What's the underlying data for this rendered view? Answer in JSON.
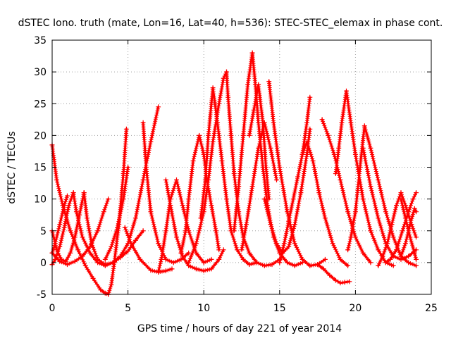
{
  "chart_data": {
    "type": "line",
    "title": "dSTEC Iono. truth (mate, Lon=16, Lat=40, h=536): STEC-STEC_elemax in phase cont.",
    "xlabel": "GPS time / hours of day 221 of year 2014",
    "ylabel": "dSTEC  / TECUs",
    "xlim": [
      0,
      25
    ],
    "ylim": [
      -5,
      35
    ],
    "xticks": [
      "0",
      "5",
      "10",
      "15",
      "20",
      "25"
    ],
    "yticks": [
      "-5",
      "0",
      "5",
      "10",
      "15",
      "20",
      "25",
      "30",
      "35"
    ],
    "grid": true,
    "marker": "plus",
    "color": "#ff0000",
    "series": [
      {
        "x": [
          0.0,
          0.3,
          0.7,
          1.2,
          1.7,
          2.2,
          2.7,
          3.2,
          3.5,
          3.7
        ],
        "y": [
          18.5,
          13,
          9,
          5,
          2,
          -0.5,
          -2.5,
          -4.3,
          -4.8,
          -5
        ]
      },
      {
        "x": [
          3.7,
          3.9,
          4.1,
          4.4,
          4.7,
          4.9
        ],
        "y": [
          -5,
          -3.5,
          0,
          6,
          14,
          21
        ]
      },
      {
        "x": [
          0.0,
          0.3,
          0.6,
          0.9,
          1.2,
          1.5,
          1.8,
          2.1
        ],
        "y": [
          5,
          2,
          0.5,
          0.2,
          1.5,
          4,
          7.5,
          11
        ]
      },
      {
        "x": [
          2.1,
          2.3,
          2.6,
          3.0,
          3.5,
          4.0,
          4.5,
          5.0,
          5.5,
          6.0
        ],
        "y": [
          11,
          7,
          3,
          0.5,
          -0.3,
          0,
          0.8,
          1.8,
          3.5,
          5
        ]
      },
      {
        "x": [
          0.0,
          0.5,
          1.0,
          1.5,
          2.0,
          2.5,
          3.0,
          3.4,
          3.7
        ],
        "y": [
          1.5,
          0.2,
          -0.3,
          0.2,
          1,
          2.5,
          5,
          8,
          10
        ]
      },
      {
        "x": [
          0.0,
          0.2,
          0.5,
          0.8,
          1.1,
          1.4
        ],
        "y": [
          -0.3,
          0.5,
          2.5,
          5.5,
          9,
          11
        ]
      },
      {
        "x": [
          1.4,
          1.6,
          2.0,
          2.5,
          3.0,
          3.5,
          4.0,
          4.5,
          5.0,
          5.5,
          6.0,
          6.5,
          7.0
        ],
        "y": [
          11,
          8,
          4,
          1.5,
          0,
          -0.5,
          0,
          1,
          3,
          7,
          13,
          19,
          24.5
        ]
      },
      {
        "x": [
          0.0,
          0.2,
          0.5,
          0.8,
          1.0
        ],
        "y": [
          1.5,
          3,
          6,
          9,
          10.5
        ]
      },
      {
        "x": [
          3.5,
          3.9,
          4.3,
          4.7,
          5.0
        ],
        "y": [
          0.5,
          2.5,
          5.5,
          10,
          15
        ]
      },
      {
        "x": [
          4.8,
          5.2,
          5.8,
          6.5,
          7.0,
          7.5,
          7.9
        ],
        "y": [
          5.5,
          3,
          0.5,
          -1.2,
          -1.5,
          -1.3,
          -1
        ]
      },
      {
        "x": [
          6.0,
          6.2,
          6.5,
          7.0,
          7.5,
          8.0,
          8.5,
          9.0
        ],
        "y": [
          22,
          15,
          8,
          3,
          0.5,
          0,
          0.5,
          1.5
        ]
      },
      {
        "x": [
          7.0,
          7.2,
          7.5,
          7.8,
          8.2,
          8.6,
          9.0,
          9.5,
          10.0,
          10.5
        ],
        "y": [
          -1.5,
          0.5,
          5,
          10,
          13,
          9,
          5,
          1.5,
          0,
          0.5
        ]
      },
      {
        "x": [
          7.5,
          7.8,
          8.2,
          8.6,
          9.0,
          9.5,
          10.0,
          10.5,
          11.0,
          11.3
        ],
        "y": [
          13,
          9,
          4,
          1,
          -0.5,
          -1,
          -1.3,
          -1,
          0.5,
          2
        ]
      },
      {
        "x": [
          8.5,
          8.8,
          9.0,
          9.3,
          9.7,
          10.0,
          10.2,
          10.5,
          10.8,
          11.0
        ],
        "y": [
          1.5,
          5,
          10,
          16,
          20,
          17,
          13,
          9,
          5,
          2
        ]
      },
      {
        "x": [
          9.0,
          9.5,
          10.0,
          10.3,
          10.6,
          11.0,
          11.3,
          11.5
        ],
        "y": [
          0,
          3,
          8,
          13,
          19,
          25,
          29,
          30
        ]
      },
      {
        "x": [
          9.8,
          10.1,
          10.3,
          10.6,
          10.9,
          11.2,
          11.5,
          11.8,
          12.2,
          12.6,
          13.0,
          13.5
        ],
        "y": [
          7,
          13,
          20,
          27.5,
          22,
          16,
          10,
          5,
          2,
          0.5,
          -0.3,
          0
        ]
      },
      {
        "x": [
          11.5,
          11.6,
          11.8,
          12.0,
          12.3,
          12.6,
          13.0,
          13.5,
          14.0,
          14.5,
          15.0
        ],
        "y": [
          30,
          26,
          20,
          14,
          8,
          4,
          1.5,
          0,
          -0.5,
          -0.3,
          0.5
        ]
      },
      {
        "x": [
          12.0,
          12.3,
          12.6,
          12.9,
          13.2
        ],
        "y": [
          5,
          12,
          20,
          28,
          33
        ]
      },
      {
        "x": [
          13.2,
          13.4,
          13.6,
          13.9,
          14.2,
          14.6,
          15.0,
          15.5,
          16.0,
          16.5
        ],
        "y": [
          33,
          28,
          22,
          15,
          9,
          4,
          1.5,
          0,
          -0.5,
          0
        ]
      },
      {
        "x": [
          13.0,
          13.3,
          13.6,
          13.9,
          14.1,
          14.3
        ],
        "y": [
          20,
          24,
          28,
          22,
          15,
          10
        ]
      },
      {
        "x": [
          12.5,
          12.8,
          13.2,
          13.6,
          14.0,
          14.4,
          14.8
        ],
        "y": [
          2,
          6,
          12,
          18,
          22,
          18,
          13
        ]
      },
      {
        "x": [
          14.3,
          14.6,
          15.0,
          15.5,
          16.0,
          16.5,
          17.0,
          17.5,
          18.0
        ],
        "y": [
          28.5,
          22,
          15,
          8,
          3,
          0.5,
          -0.5,
          -0.3,
          0.5
        ]
      },
      {
        "x": [
          14.0,
          14.4,
          14.8,
          15.2,
          15.6,
          16.0,
          16.4,
          16.8,
          17.0
        ],
        "y": [
          10,
          6,
          3,
          1.5,
          2.5,
          6,
          11,
          17,
          21
        ]
      },
      {
        "x": [
          15.0,
          15.3,
          15.6,
          15.9,
          16.2,
          16.5,
          16.8,
          17.0
        ],
        "y": [
          0,
          3,
          6.5,
          10,
          13.5,
          17,
          22,
          26
        ]
      },
      {
        "x": [
          16.5,
          16.8,
          17.2,
          17.6,
          18.0,
          18.5,
          19.0,
          19.5
        ],
        "y": [
          17,
          19,
          16,
          11,
          7,
          3,
          0.5,
          -0.5
        ]
      },
      {
        "x": [
          17.5,
          17.9,
          18.3,
          18.7,
          19.0,
          19.3,
          19.6
        ],
        "y": [
          -0.3,
          -1,
          -2,
          -2.8,
          -3.2,
          -3.1,
          -3
        ]
      },
      {
        "x": [
          17.8,
          18.2,
          18.6,
          19.0,
          19.5,
          20.0,
          20.5,
          21.0
        ],
        "y": [
          22.5,
          20,
          17,
          13,
          8,
          4,
          1.5,
          0
        ]
      },
      {
        "x": [
          18.7,
          18.9,
          19.1,
          19.4,
          19.7,
          20.0,
          20.5,
          21.0,
          21.5,
          22.0,
          22.5
        ],
        "y": [
          14,
          18,
          22,
          27,
          22,
          17,
          10,
          5,
          2,
          0,
          -0.5
        ]
      },
      {
        "x": [
          19.5,
          19.7,
          20.0,
          20.3,
          20.6,
          21.0,
          21.5,
          22.0,
          22.5,
          23.0,
          23.5,
          24.0
        ],
        "y": [
          2,
          4,
          8,
          15,
          21.5,
          18,
          13,
          8,
          4,
          1,
          0,
          -0.5
        ]
      },
      {
        "x": [
          20.5,
          21.0,
          21.5,
          22.0,
          22.5,
          23.0,
          23.5,
          24.0
        ],
        "y": [
          18,
          12,
          7,
          3,
          1,
          0.5,
          1,
          2
        ]
      },
      {
        "x": [
          21.5,
          21.8,
          22.1,
          22.4,
          22.7,
          23.0,
          23.3,
          23.7,
          24.0
        ],
        "y": [
          -0.5,
          1,
          3,
          6,
          9,
          11,
          9,
          6,
          4
        ]
      },
      {
        "x": [
          22.0,
          22.3,
          22.7,
          23.1,
          23.5,
          23.8,
          24.0
        ],
        "y": [
          0,
          0.5,
          2,
          5,
          8,
          10,
          11
        ]
      },
      {
        "x": [
          23.0,
          23.3,
          23.6,
          23.9,
          24.0
        ],
        "y": [
          1,
          3,
          6,
          8.5,
          8
        ]
      },
      {
        "x": [
          23.0,
          23.3,
          23.6,
          23.9,
          24.0
        ],
        "y": [
          10,
          7,
          4,
          1.5,
          0.5
        ]
      }
    ]
  }
}
